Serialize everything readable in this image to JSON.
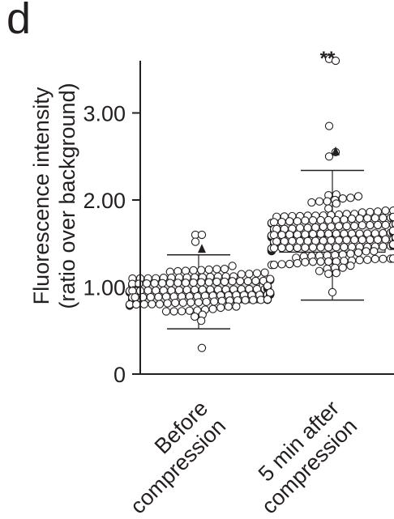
{
  "panel_label": "d",
  "chart_data": {
    "type": "box-swarm",
    "title": "",
    "ylabel": "Fluorescence intensity",
    "ylabel_sub": "(ratio over background)",
    "ylim": [
      0,
      3.75
    ],
    "yticks": [
      {
        "value": 0,
        "label": "0"
      },
      {
        "value": 1.0,
        "label": "1.00"
      },
      {
        "value": 2.0,
        "label": "2.00"
      },
      {
        "value": 3.0,
        "label": "3.00"
      }
    ],
    "categories": [
      {
        "line1": "Before",
        "line2": "compression"
      },
      {
        "line1": "5 min after",
        "line2": "compression"
      }
    ],
    "groups": [
      {
        "name": "Before compression",
        "box": {
          "whisker_low": 0.52,
          "q1": 0.82,
          "median": 0.95,
          "q3": 1.05,
          "whisker_high": 1.37
        },
        "mean": 1.43,
        "significance": "",
        "n_points": 190,
        "outliers": [
          1.6,
          1.6,
          1.52,
          0.3
        ]
      },
      {
        "name": "5 min after compression",
        "box": {
          "whisker_low": 0.85,
          "q1": 1.4,
          "median": 1.58,
          "q3": 1.78,
          "whisker_high": 2.34
        },
        "mean": 2.55,
        "significance": "**",
        "n_points": 230,
        "outliers": [
          3.62,
          3.6,
          2.85,
          2.55,
          2.5
        ]
      }
    ],
    "grid": false
  }
}
